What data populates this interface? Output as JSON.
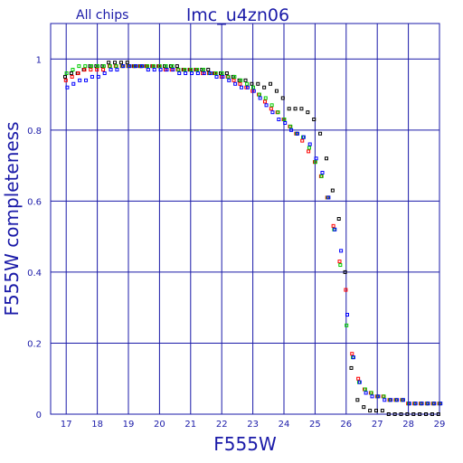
{
  "chart_data": {
    "type": "scatter",
    "title": "lmc_u4zn06",
    "subtitle": "All chips",
    "xlabel": "F555W",
    "ylabel": "F555W completeness",
    "xlim": [
      16.5,
      29
    ],
    "ylim": [
      0,
      1.1
    ],
    "xticks": [
      17,
      18,
      19,
      20,
      21,
      22,
      23,
      24,
      25,
      26,
      27,
      28,
      29
    ],
    "yticks": [
      0,
      0.2,
      0.4,
      0.6,
      0.8,
      1
    ],
    "xtick_labels": [
      "17",
      "18",
      "19",
      "20",
      "21",
      "22",
      "23",
      "24",
      "25",
      "26",
      "27",
      "28",
      "29"
    ],
    "ytick_labels": [
      "0",
      "0.2",
      "0.4",
      "0.6",
      "0.8",
      "1"
    ],
    "grid": true,
    "x": [
      17.0,
      17.2,
      17.4,
      17.6,
      17.8,
      18.0,
      18.2,
      18.4,
      18.6,
      18.8,
      19.0,
      19.2,
      19.4,
      19.6,
      19.8,
      20.0,
      20.2,
      20.4,
      20.6,
      20.8,
      21.0,
      21.2,
      21.4,
      21.6,
      21.8,
      22.0,
      22.2,
      22.4,
      22.6,
      22.8,
      23.0,
      23.2,
      23.4,
      23.6,
      23.8,
      24.0,
      24.2,
      24.4,
      24.6,
      24.8,
      25.0,
      25.2,
      25.4,
      25.6,
      25.8,
      26.0,
      26.2,
      26.4,
      26.6,
      26.8,
      27.0,
      27.2,
      27.4,
      27.6,
      27.8,
      28.0,
      28.2,
      28.4,
      28.6,
      28.8,
      29.0
    ],
    "series": [
      {
        "color": "#000000",
        "values": [
          0.95,
          0.96,
          0.96,
          0.97,
          0.98,
          0.98,
          0.98,
          0.99,
          0.99,
          0.99,
          0.99,
          0.98,
          0.98,
          0.98,
          0.98,
          0.98,
          0.98,
          0.98,
          0.98,
          0.97,
          0.97,
          0.97,
          0.97,
          0.97,
          0.96,
          0.96,
          0.96,
          0.95,
          0.94,
          0.94,
          0.93,
          0.93,
          0.92,
          0.93,
          0.91,
          0.89,
          0.86,
          0.86,
          0.86,
          0.85,
          0.83,
          0.79,
          0.72,
          0.63,
          0.55,
          0.4,
          0.13,
          0.04,
          0.02,
          0.01,
          0.01,
          0.01,
          0.0,
          0.0,
          0.0,
          0.0,
          0.0,
          0.0,
          0.0,
          0.0,
          0.0
        ]
      },
      {
        "color": "#ff0000",
        "values": [
          0.94,
          0.95,
          0.96,
          0.97,
          0.97,
          0.97,
          0.97,
          0.98,
          0.98,
          0.98,
          0.98,
          0.98,
          0.98,
          0.98,
          0.98,
          0.98,
          0.97,
          0.97,
          0.97,
          0.97,
          0.97,
          0.97,
          0.96,
          0.96,
          0.96,
          0.95,
          0.95,
          0.94,
          0.93,
          0.92,
          0.91,
          0.9,
          0.88,
          0.86,
          0.85,
          0.83,
          0.81,
          0.79,
          0.77,
          0.74,
          0.71,
          0.67,
          0.61,
          0.53,
          0.43,
          0.35,
          0.17,
          0.1,
          0.07,
          0.06,
          0.05,
          0.05,
          0.04,
          0.04,
          0.04,
          0.03,
          0.03,
          0.03,
          0.03,
          0.03,
          0.03
        ]
      },
      {
        "color": "#00cc00",
        "values": [
          0.96,
          0.97,
          0.98,
          0.98,
          0.98,
          0.98,
          0.98,
          0.98,
          0.98,
          0.98,
          0.98,
          0.98,
          0.98,
          0.98,
          0.98,
          0.98,
          0.98,
          0.98,
          0.97,
          0.97,
          0.97,
          0.97,
          0.97,
          0.96,
          0.96,
          0.96,
          0.95,
          0.95,
          0.94,
          0.93,
          0.92,
          0.9,
          0.89,
          0.87,
          0.85,
          0.83,
          0.81,
          0.79,
          0.78,
          0.75,
          0.71,
          0.67,
          0.61,
          0.52,
          0.42,
          0.25,
          0.16,
          0.09,
          0.07,
          0.06,
          0.05,
          0.05,
          0.04,
          0.04,
          0.04,
          0.03,
          0.03,
          0.03,
          0.03,
          0.03,
          0.03
        ]
      },
      {
        "color": "#0000ff",
        "values": [
          0.92,
          0.93,
          0.94,
          0.94,
          0.95,
          0.95,
          0.96,
          0.97,
          0.97,
          0.98,
          0.98,
          0.98,
          0.98,
          0.97,
          0.97,
          0.97,
          0.97,
          0.97,
          0.96,
          0.96,
          0.96,
          0.96,
          0.96,
          0.96,
          0.95,
          0.95,
          0.94,
          0.93,
          0.92,
          0.92,
          0.91,
          0.89,
          0.87,
          0.85,
          0.83,
          0.82,
          0.8,
          0.79,
          0.78,
          0.76,
          0.72,
          0.68,
          0.61,
          0.52,
          0.46,
          0.28,
          0.16,
          0.09,
          0.06,
          0.05,
          0.05,
          0.04,
          0.04,
          0.04,
          0.04,
          0.03,
          0.03,
          0.03,
          0.03,
          0.03,
          0.03
        ]
      }
    ]
  }
}
